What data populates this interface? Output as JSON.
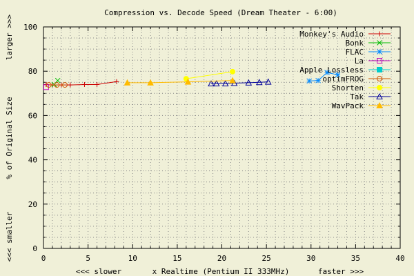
{
  "chart_data": {
    "type": "line",
    "title": "Compression vs. Decode Speed (Dream Theater - 6:00)",
    "xlabel": "x Realtime (Pentium II 333MHz)",
    "xlabel_left": "<<< slower",
    "xlabel_right": "faster >>>",
    "ylabel": "% of Original Size",
    "ylabel_top": "larger >>>",
    "ylabel_bottom": "<<< smaller",
    "xlim": [
      0,
      40
    ],
    "ylim": [
      0,
      100
    ],
    "x_ticks": [
      0,
      5,
      10,
      15,
      20,
      25,
      30,
      35,
      40
    ],
    "y_ticks": [
      0,
      20,
      40,
      60,
      80,
      100
    ],
    "grid": true,
    "legend_position": "top-right",
    "series": [
      {
        "name": "Monkey's Audio",
        "color": "#cc0000",
        "marker": "plus",
        "points": [
          [
            0.3,
            74.0
          ],
          [
            1.0,
            73.8
          ],
          [
            2.0,
            73.8
          ],
          [
            3.0,
            73.8
          ],
          [
            4.6,
            74.0
          ],
          [
            6.0,
            74.0
          ],
          [
            8.2,
            75.3
          ]
        ]
      },
      {
        "name": "Bonk",
        "color": "#00bb00",
        "marker": "cross",
        "points": [
          [
            1.2,
            74.0
          ],
          [
            1.6,
            75.8
          ]
        ]
      },
      {
        "name": "FLAC",
        "color": "#0088ff",
        "marker": "star",
        "points": [
          [
            29.8,
            75.6
          ],
          [
            30.8,
            75.8
          ],
          [
            31.8,
            79.4
          ],
          [
            33.0,
            78.4
          ]
        ]
      },
      {
        "name": "La",
        "color": "#bb00bb",
        "marker": "square",
        "points": [
          [
            0.3,
            72.8
          ]
        ]
      },
      {
        "name": "Apple Lossless",
        "color": "#00cccc",
        "marker": "filled-square",
        "points": []
      },
      {
        "name": "optimFROG",
        "color": "#cc5500",
        "marker": "circle",
        "points": [
          [
            0.6,
            73.8
          ],
          [
            1.5,
            73.8
          ],
          [
            2.4,
            73.8
          ]
        ]
      },
      {
        "name": "Shorten",
        "color": "#ffff00",
        "marker": "filled-circle",
        "points": [
          [
            16.0,
            76.6
          ],
          [
            21.2,
            79.8
          ]
        ]
      },
      {
        "name": "Tak",
        "color": "#000099",
        "marker": "triangle",
        "points": [
          [
            18.8,
            74.4
          ],
          [
            19.4,
            74.4
          ],
          [
            20.4,
            74.4
          ],
          [
            21.4,
            74.6
          ],
          [
            23.0,
            74.8
          ],
          [
            24.2,
            75.0
          ],
          [
            25.2,
            75.2
          ]
        ]
      },
      {
        "name": "WavPack",
        "color": "#ffbb00",
        "marker": "filled-triangle",
        "points": [
          [
            9.4,
            74.8
          ],
          [
            12.0,
            74.8
          ],
          [
            16.2,
            75.2
          ],
          [
            21.2,
            75.8
          ]
        ]
      }
    ]
  }
}
